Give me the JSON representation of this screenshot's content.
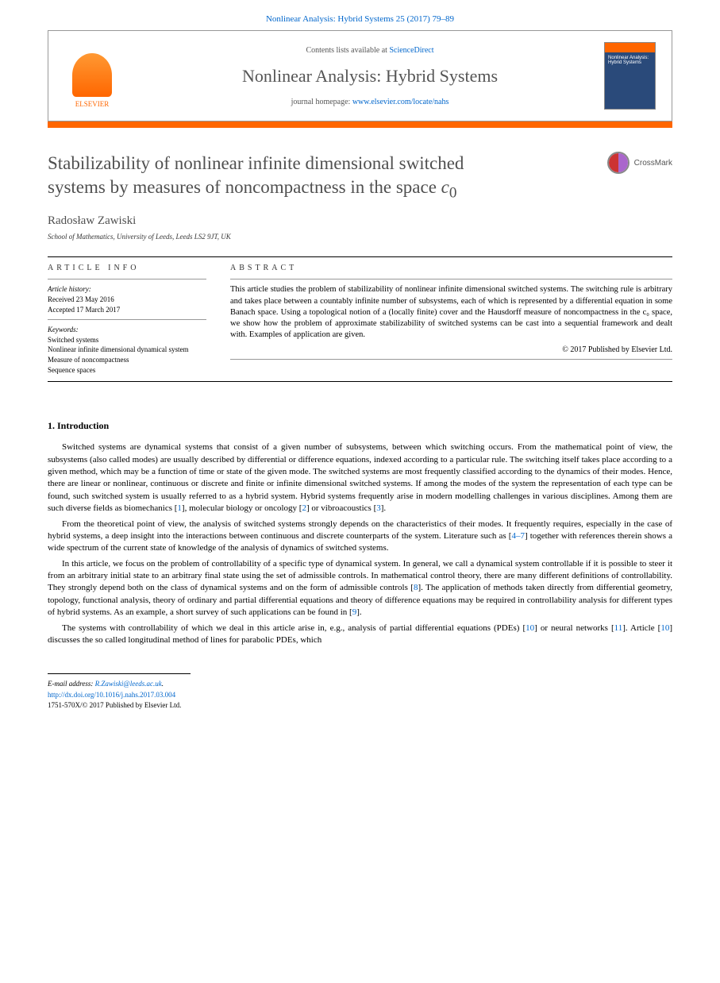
{
  "header": {
    "citation_journal": "Nonlinear Analysis: Hybrid Systems 25 (2017) 79–89",
    "contents_prefix": "Contents lists available at ",
    "contents_link": "ScienceDirect",
    "journal_title": "Nonlinear Analysis: Hybrid Systems",
    "homepage_prefix": "journal homepage: ",
    "homepage_link": "www.elsevier.com/locate/nahs",
    "publisher_name": "ELSEVIER",
    "cover_line1": "Nonlinear Analysis:",
    "cover_line2": "Hybrid Systems"
  },
  "crossmark_label": "CrossMark",
  "article": {
    "title_line1": "Stabilizability of nonlinear infinite dimensional switched",
    "title_line2_a": "systems by measures of noncompactness in the space ",
    "title_line2_b": "c",
    "title_line2_c": "0",
    "author": "Radosław Zawiski",
    "affiliation": "School of Mathematics, University of Leeds, Leeds LS2 9JT, UK"
  },
  "info": {
    "heading": "article info",
    "history_label": "Article history:",
    "received": "Received 23 May 2016",
    "accepted": "Accepted 17 March 2017",
    "keywords_label": "Keywords:",
    "kw1": "Switched systems",
    "kw2": "Nonlinear infinite dimensional dynamical system",
    "kw3": "Measure of noncompactness",
    "kw4": "Sequence spaces"
  },
  "abstract": {
    "heading": "abstract",
    "text": "This article studies the problem of stabilizability of nonlinear infinite dimensional switched systems. The switching rule is arbitrary and takes place between a countably infinite number of subsystems, each of which is represented by a differential equation in some Banach space. Using a topological notion of a (locally finite) cover and the Hausdorff measure of noncompactness in the c₀ space, we show how the problem of approximate stabilizability of switched systems can be cast into a sequential framework and dealt with. Examples of application are given.",
    "copyright": "© 2017 Published by Elsevier Ltd."
  },
  "section1": {
    "title": "1. Introduction",
    "p1a": "Switched systems are dynamical systems that consist of a given number of subsystems, between which switching occurs. From the mathematical point of view, the subsystems (also called modes) are usually described by differential or difference equations, indexed according to a particular rule. The switching itself takes place according to a given method, which may be a function of time or state of the given mode. The switched systems are most frequently classified according to the dynamics of their modes. Hence, there are linear or nonlinear, continuous or discrete and finite or infinite dimensional switched systems. If among the modes of the system the representation of each type can be found, such switched system is usually referred to as a hybrid system. Hybrid systems frequently arise in modern modelling challenges in various disciplines. Among them are such diverse fields as biomechanics [",
    "p1r1": "1",
    "p1b": "], molecular biology or oncology [",
    "p1r2": "2",
    "p1c": "] or vibroacoustics [",
    "p1r3": "3",
    "p1d": "].",
    "p2a": "From the theoretical point of view, the analysis of switched systems strongly depends on the characteristics of their modes. It frequently requires, especially in the case of hybrid systems, a deep insight into the interactions between continuous and discrete counterparts of the system. Literature such as [",
    "p2r1": "4–7",
    "p2b": "] together with references therein shows a wide spectrum of the current state of knowledge of the analysis of dynamics of switched systems.",
    "p3a": "In this article, we focus on the problem of controllability of a specific type of dynamical system. In general, we call a dynamical system controllable if it is possible to steer it from an arbitrary initial state to an arbitrary final state using the set of admissible controls. In mathematical control theory, there are many different definitions of controllability. They strongly depend both on the class of dynamical systems and on the form of admissible controls [",
    "p3r1": "8",
    "p3b": "]. The application of methods taken directly from differential geometry, topology, functional analysis, theory of ordinary and partial differential equations and theory of difference equations may be required in controllability analysis for different types of hybrid systems. As an example, a short survey of such applications can be found in [",
    "p3r2": "9",
    "p3c": "].",
    "p4a": "The systems with controllability of which we deal in this article arise in, e.g., analysis of partial differential equations (PDEs) [",
    "p4r1": "10",
    "p4b": "] or neural networks [",
    "p4r2": "11",
    "p4c": "]. Article [",
    "p4r3": "10",
    "p4d": "] discusses the so called longitudinal method of lines for parabolic PDEs, which"
  },
  "footer": {
    "email_label": "E-mail address: ",
    "email": "R.Zawiski@leeds.ac.uk",
    "email_suffix": ".",
    "doi": "http://dx.doi.org/10.1016/j.nahs.2017.03.004",
    "issn_line": "1751-570X/© 2017 Published by Elsevier Ltd."
  },
  "colors": {
    "link": "#0066cc",
    "orange": "#ff6600",
    "title_gray": "#505050"
  }
}
